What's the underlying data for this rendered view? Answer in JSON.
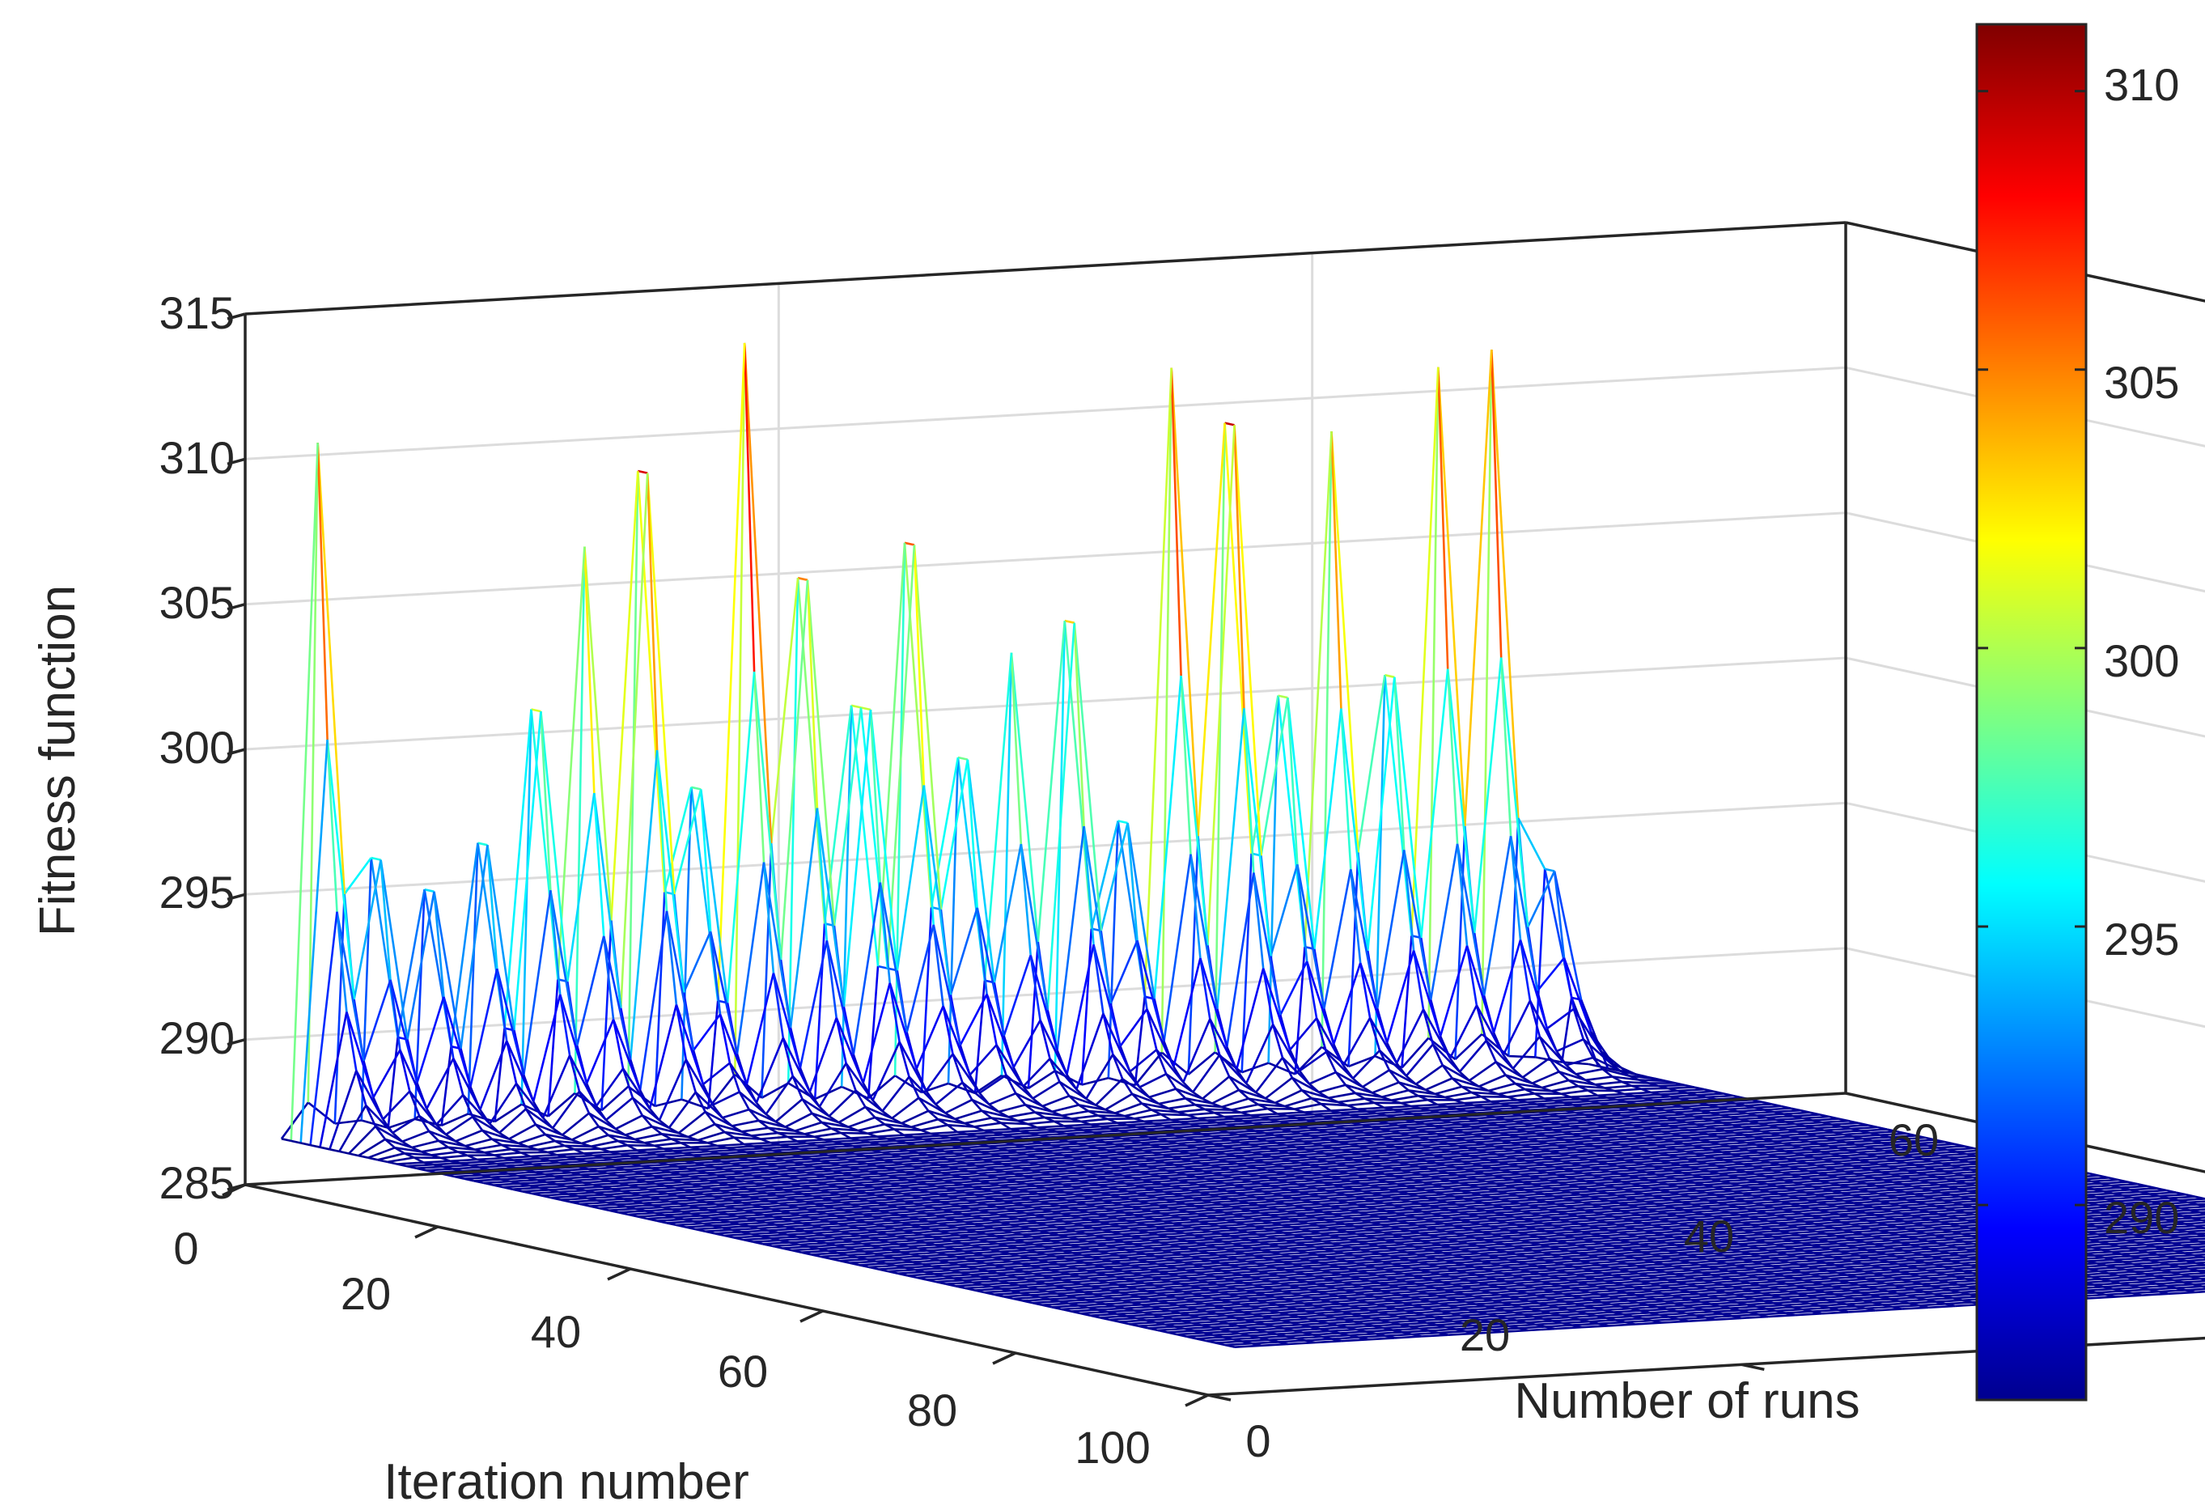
{
  "chart_data": {
    "type": "surface-mesh-3d",
    "title": "",
    "xlabel": "Iteration number",
    "ylabel": "Number of runs",
    "zlabel": "Fitness function",
    "xlim": [
      0,
      100
    ],
    "ylim": [
      0,
      60
    ],
    "zlim": [
      285,
      315
    ],
    "xticks": [
      0,
      20,
      40,
      60,
      80,
      100
    ],
    "yticks": [
      0,
      20,
      40,
      60
    ],
    "zticks": [
      285,
      290,
      295,
      300,
      305,
      310,
      315
    ],
    "grid": true,
    "colormap": "jet",
    "colorbar": {
      "limits": [
        286.5,
        311.2
      ],
      "ticks": [
        290,
        295,
        300,
        305,
        310
      ],
      "colors": [
        "#00008f",
        "#0000ff",
        "#00ffff",
        "#ffff00",
        "#ff0000",
        "#800000"
      ]
    },
    "baseline_value": 286.6,
    "converged_after_iteration": 12,
    "peaks": [
      {
        "run": 2,
        "iteration": 2,
        "value": 310.6
      },
      {
        "run": 4,
        "iteration": 3,
        "value": 296.2
      },
      {
        "run": 6,
        "iteration": 3,
        "value": 295.0
      },
      {
        "run": 8,
        "iteration": 3,
        "value": 296.5
      },
      {
        "run": 10,
        "iteration": 3,
        "value": 301.0
      },
      {
        "run": 12,
        "iteration": 2,
        "value": 306.5
      },
      {
        "run": 14,
        "iteration": 3,
        "value": 309.0
      },
      {
        "run": 16,
        "iteration": 3,
        "value": 298.0
      },
      {
        "run": 18,
        "iteration": 2,
        "value": 313.2
      },
      {
        "run": 20,
        "iteration": 3,
        "value": 305.0
      },
      {
        "run": 22,
        "iteration": 4,
        "value": 300.5
      },
      {
        "run": 24,
        "iteration": 3,
        "value": 306.0
      },
      {
        "run": 26,
        "iteration": 3,
        "value": 298.5
      },
      {
        "run": 28,
        "iteration": 2,
        "value": 302.0
      },
      {
        "run": 30,
        "iteration": 3,
        "value": 303.0
      },
      {
        "run": 32,
        "iteration": 3,
        "value": 296.0
      },
      {
        "run": 34,
        "iteration": 2,
        "value": 311.5
      },
      {
        "run": 36,
        "iteration": 3,
        "value": 309.5
      },
      {
        "run": 38,
        "iteration": 3,
        "value": 300.0
      },
      {
        "run": 40,
        "iteration": 2,
        "value": 309.0
      },
      {
        "run": 42,
        "iteration": 3,
        "value": 300.5
      },
      {
        "run": 44,
        "iteration": 2,
        "value": 311.0
      },
      {
        "run": 46,
        "iteration": 2,
        "value": 311.5
      },
      {
        "run": 48,
        "iteration": 3,
        "value": 293.5
      }
    ]
  }
}
